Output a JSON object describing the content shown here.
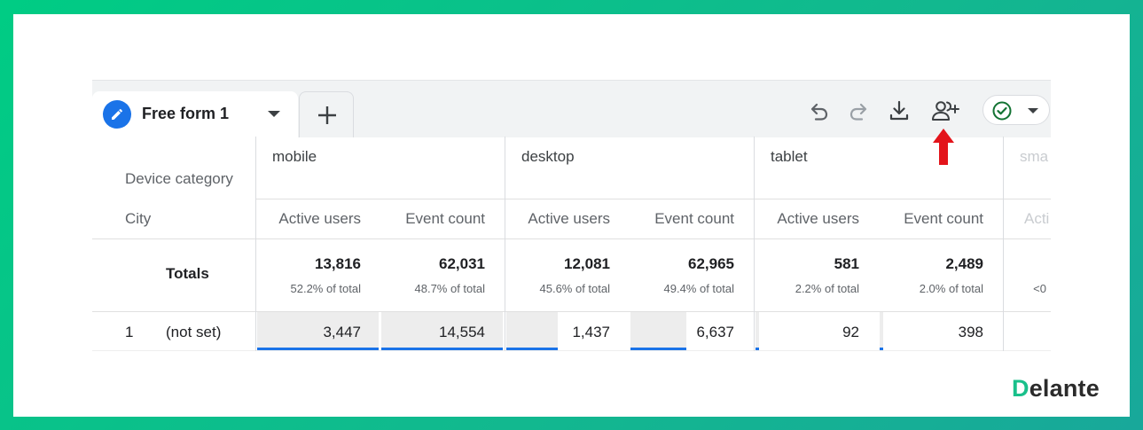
{
  "report_tab": {
    "label": "Free form 1"
  },
  "toolbar": {
    "undo_icon": "undo-icon",
    "redo_icon": "redo-icon",
    "download_icon": "download-icon",
    "share_icon": "add-person-icon",
    "status_icon": "check-circle-icon"
  },
  "table": {
    "row_dimension_header": "Device category",
    "dimension_header": "City",
    "groups": [
      {
        "label": "mobile"
      },
      {
        "label": "desktop"
      },
      {
        "label": "tablet"
      },
      {
        "label": "sma"
      }
    ],
    "metric_headers": [
      "Active users",
      "Event count",
      "Active users",
      "Event count",
      "Active users",
      "Event count",
      "Acti"
    ],
    "totals_label": "Totals",
    "totals": [
      {
        "value": "13,816",
        "pct": "52.2% of total"
      },
      {
        "value": "62,031",
        "pct": "48.7% of total"
      },
      {
        "value": "12,081",
        "pct": "45.6% of total"
      },
      {
        "value": "62,965",
        "pct": "49.4% of total"
      },
      {
        "value": "581",
        "pct": "2.2% of total"
      },
      {
        "value": "2,489",
        "pct": "2.0% of total"
      },
      {
        "value": "",
        "pct": "<0"
      }
    ],
    "rows": [
      {
        "index": "1",
        "city": "(not set)",
        "cells": [
          {
            "value": "3,447",
            "fill": 1.0
          },
          {
            "value": "14,554",
            "fill": 1.0
          },
          {
            "value": "1,437",
            "fill": 0.42
          },
          {
            "value": "6,637",
            "fill": 0.46
          },
          {
            "value": "92",
            "fill": 0.03
          },
          {
            "value": "398",
            "fill": 0.03
          }
        ]
      }
    ]
  },
  "annotation": {
    "arrow_color": "#e3141b",
    "arrow_icon": "arrow-up-icon"
  },
  "brand": {
    "logo_first": "D",
    "logo_rest": "elante",
    "accent": "#19c08b",
    "frame_color": "#00cc84"
  }
}
